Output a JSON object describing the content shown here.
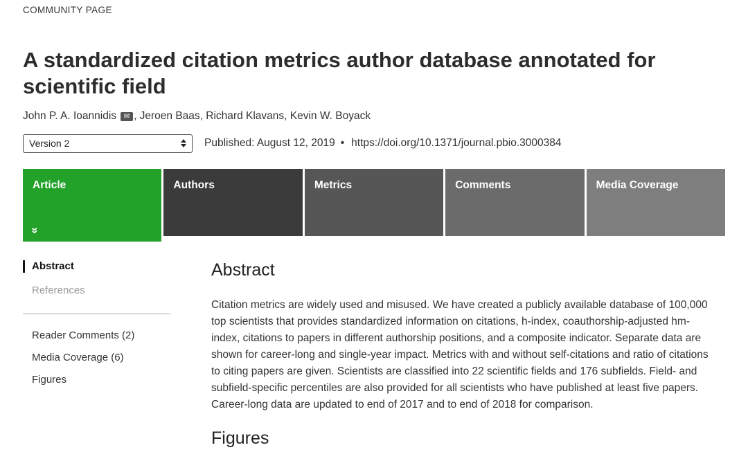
{
  "kicker": "COMMUNITY PAGE",
  "title": "A standardized citation metrics author database annotated for scientific field",
  "authors": {
    "separator": ",  ",
    "list": [
      {
        "name": "John P. A. Ioannidis"
      },
      {
        "name": "Jeroen Baas"
      },
      {
        "name": "Richard Klavans"
      },
      {
        "name": "Kevin W. Boyack"
      }
    ]
  },
  "icons": {
    "email": "✉",
    "expand_chevrons": "»"
  },
  "version_select": {
    "selected": "Version 2"
  },
  "meta": {
    "published": "Published: August 12, 2019",
    "bullet": "•",
    "doi": "https://doi.org/10.1371/journal.pbio.3000384"
  },
  "colors": {
    "active_tab_green": "#22a229",
    "tab_authors": "#3b3b3b",
    "tab_metrics": "#565656",
    "tab_comments": "#6b6b6b",
    "tab_media": "#7e7e7e"
  },
  "tabs": [
    {
      "label": "Article",
      "color": "#22a229"
    },
    {
      "label": "Authors",
      "color": "#3b3b3b"
    },
    {
      "label": "Metrics",
      "color": "#565656"
    },
    {
      "label": "Comments",
      "color": "#6b6b6b"
    },
    {
      "label": "Media Coverage",
      "color": "#7e7e7e"
    }
  ],
  "sidebar": {
    "items": [
      {
        "label": "Abstract"
      },
      {
        "label": "References"
      },
      {
        "label": "Reader Comments (2)"
      },
      {
        "label": "Media Coverage (6)"
      },
      {
        "label": "Figures"
      }
    ]
  },
  "article": {
    "abstract_heading": "Abstract",
    "abstract_text": "Citation metrics are widely used and misused. We have created a publicly available database of 100,000 top scientists that provides standardized information on citations, h-index, coauthorship-adjusted hm-index, citations to papers in different authorship positions, and a composite indicator. Separate data are shown for career-long and single-year impact. Metrics with and without self-citations and ratio of citations to citing papers are given. Scientists are classified into 22 scientific fields and 176 subfields. Field- and subfield-specific percentiles are also provided for all scientists who have published at least five papers. Career-long data are updated to end of 2017 and to end of 2018 for comparison.",
    "figures_heading": "Figures"
  }
}
